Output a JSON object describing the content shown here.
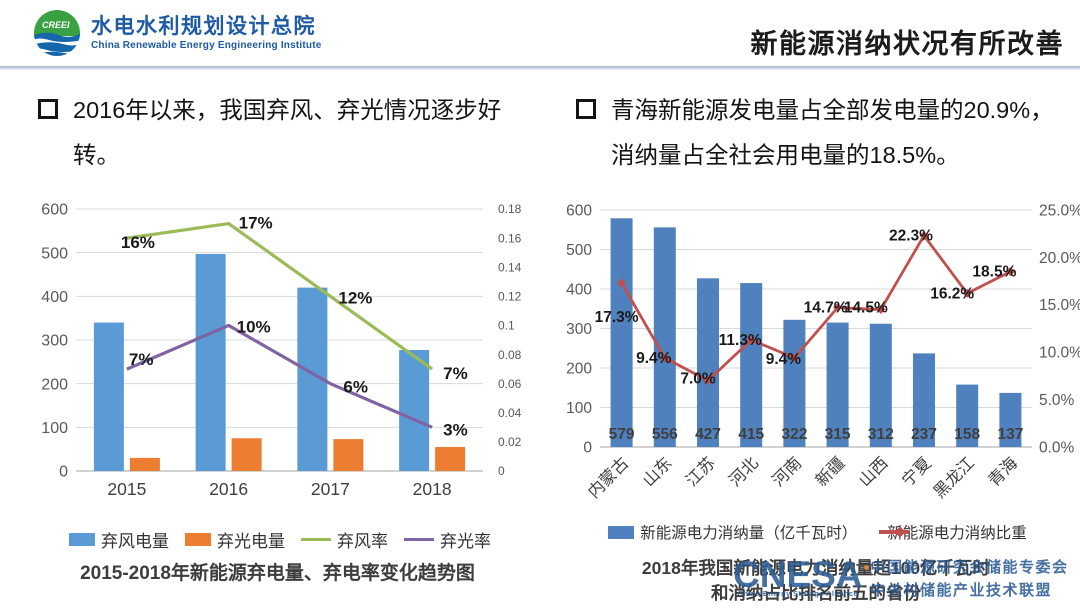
{
  "header": {
    "logo": {
      "acronym": "CREEI",
      "org_cn": "水电水利规划设计总院",
      "org_en": "China Renewable Energy Engineering Institute"
    },
    "title": "新能源消纳状况有所改善"
  },
  "bullets": {
    "left": "2016年以来，我国弃风、弃光情况逐步好转。",
    "right": "青海新能源发电量占全部发电量的20.9%，消纳量占全社会用电量的18.5%。"
  },
  "watermark": {
    "acronym": "CNESA",
    "subtitle": "China Energy Storage Alliance",
    "org_line1": "中国能源研究会储能专委会",
    "org_line2": "中关村储能产业技术联盟",
    "color": "#2d5d95"
  },
  "colors": {
    "wind_bar": "#5B9BD5",
    "solar_bar": "#ED7D31",
    "wind_rate_line": "#9BBB59",
    "solar_rate_line": "#8064A2",
    "consumption_bar": "#4E81BD",
    "ratio_line": "#C0504D",
    "header_blue": "#1e5aa6",
    "grid": "#d9d9d9"
  },
  "chart_data": [
    {
      "type": "bar",
      "title": "2015-2018年新能源弃电量、弃电率变化趋势图",
      "categories": [
        "2015",
        "2016",
        "2017",
        "2018"
      ],
      "series": [
        {
          "name": "弃风电量",
          "type": "bar",
          "axis": "left",
          "color": "#5B9BD5",
          "values": [
            340,
            497,
            420,
            277
          ]
        },
        {
          "name": "弃光电量",
          "type": "bar",
          "axis": "left",
          "color": "#ED7D31",
          "values": [
            30,
            75,
            73,
            55
          ]
        },
        {
          "name": "弃风率",
          "type": "line",
          "axis": "right",
          "color": "#9BBB59",
          "values": [
            0.16,
            0.17,
            0.12,
            0.07
          ],
          "labels": [
            "16%",
            "17%",
            "12%",
            "7%"
          ]
        },
        {
          "name": "弃光率",
          "type": "line",
          "axis": "right",
          "color": "#8064A2",
          "values": [
            0.07,
            0.1,
            0.06,
            0.03
          ],
          "labels": [
            "7%",
            "10%",
            "6%",
            "3%"
          ]
        }
      ],
      "left_axis": {
        "min": 0,
        "max": 600,
        "step": 100,
        "ticks": [
          "0",
          "100",
          "200",
          "300",
          "400",
          "500",
          "600"
        ]
      },
      "right_axis": {
        "min": 0,
        "max": 0.18,
        "step": 0.02,
        "ticks": [
          "0",
          "0.02",
          "0.04",
          "0.06",
          "0.08",
          "0.1",
          "0.12",
          "0.14",
          "0.16",
          "0.18"
        ]
      },
      "grid": true,
      "legend_position": "bottom"
    },
    {
      "type": "bar",
      "title_line1": "2018年我国新能源电力消纳量超100亿千瓦时",
      "title_line2": "和消纳占比排名前五的省份",
      "categories": [
        "内蒙古",
        "山东",
        "江苏",
        "河北",
        "河南",
        "新疆",
        "山西",
        "宁夏",
        "黑龙江",
        "青海"
      ],
      "series": [
        {
          "name": "新能源电力消纳量（亿千瓦时）",
          "type": "bar",
          "axis": "left",
          "color": "#4E81BD",
          "values": [
            579,
            556,
            427,
            415,
            322,
            315,
            312,
            237,
            158,
            137
          ],
          "show_value_labels": true
        },
        {
          "name": "新能源电力消纳比重",
          "type": "line",
          "axis": "right",
          "color": "#C0504D",
          "marker": "diamond",
          "values": [
            17.3,
            9.4,
            7.0,
            11.3,
            9.4,
            14.7,
            14.5,
            22.3,
            16.2,
            18.5
          ],
          "labels": [
            "17.3%",
            "9.4%",
            "7.0%",
            "11.3%",
            "9.4%",
            "14.7%",
            "14.5%",
            "22.3%",
            "16.2%",
            "18.5%"
          ]
        }
      ],
      "left_axis": {
        "min": 0,
        "max": 600,
        "step": 100,
        "ticks": [
          "0",
          "100",
          "200",
          "300",
          "400",
          "500",
          "600"
        ]
      },
      "right_axis": {
        "min": 0,
        "max": 25,
        "step": 5,
        "ticks": [
          "0.0%",
          "5.0%",
          "10.0%",
          "15.0%",
          "20.0%",
          "25.0%"
        ]
      },
      "grid": true,
      "legend_position": "bottom",
      "x_label_rotation": -45
    }
  ]
}
